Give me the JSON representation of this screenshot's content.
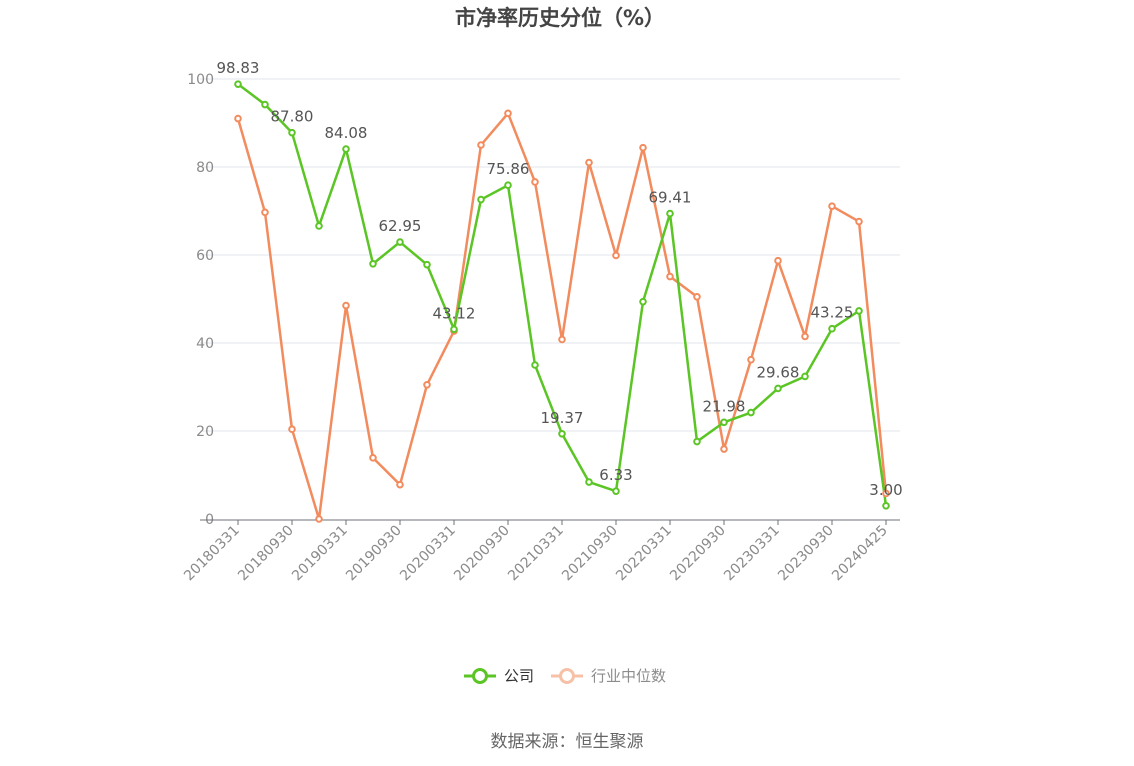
{
  "chart_data": {
    "type": "line",
    "title": "市净率历史分位（%）",
    "xlabel": "",
    "ylabel": "",
    "ylim": [
      0,
      100
    ],
    "yticks": [
      0,
      20,
      40,
      60,
      80,
      100
    ],
    "grid": true,
    "legend_position": "bottom-center",
    "x": [
      "20180331",
      "20180630",
      "20180930",
      "20181231",
      "20190331",
      "20190630",
      "20190930",
      "20191231",
      "20200331",
      "20200630",
      "20200930",
      "20201231",
      "20210331",
      "20210630",
      "20210930",
      "20211231",
      "20220331",
      "20220630",
      "20220930",
      "20221231",
      "20230331",
      "20230630",
      "20230930",
      "20231231",
      "20240425"
    ],
    "x_tick_labels": [
      "20180331",
      "20180930",
      "20190331",
      "20190930",
      "20200331",
      "20200930",
      "20210331",
      "20210930",
      "20220331",
      "20220930",
      "20230331",
      "20230930",
      "20240425"
    ],
    "series": [
      {
        "name": "公司",
        "color": "#5ac524",
        "values": [
          98.83,
          94.2,
          87.8,
          66.6,
          84.08,
          58.0,
          62.95,
          57.8,
          43.12,
          72.6,
          75.86,
          35.0,
          19.37,
          8.4,
          6.33,
          49.4,
          69.41,
          17.6,
          21.98,
          24.2,
          29.68,
          32.4,
          43.25,
          47.3,
          3.0
        ],
        "labels": [
          "98.83",
          "",
          "87.80",
          "",
          "84.08",
          "",
          "62.95",
          "",
          "43.12",
          "",
          "75.86",
          "",
          "19.37",
          "",
          "6.33",
          "",
          "69.41",
          "",
          "21.98",
          "",
          "29.68",
          "",
          "43.25",
          "",
          "3.00"
        ]
      },
      {
        "name": "行业中位数",
        "color": "#f28b5d",
        "values": [
          91.0,
          69.7,
          20.4,
          0.0,
          48.5,
          13.9,
          7.8,
          30.5,
          42.7,
          85.0,
          92.2,
          76.6,
          40.8,
          81.0,
          59.9,
          84.4,
          55.1,
          50.5,
          15.9,
          36.2,
          58.7,
          41.5,
          71.1,
          67.6,
          5.8
        ]
      }
    ]
  },
  "legend": {
    "company_label": "公司",
    "industry_label": "行业中位数"
  },
  "source": "数据来源：恒生聚源"
}
